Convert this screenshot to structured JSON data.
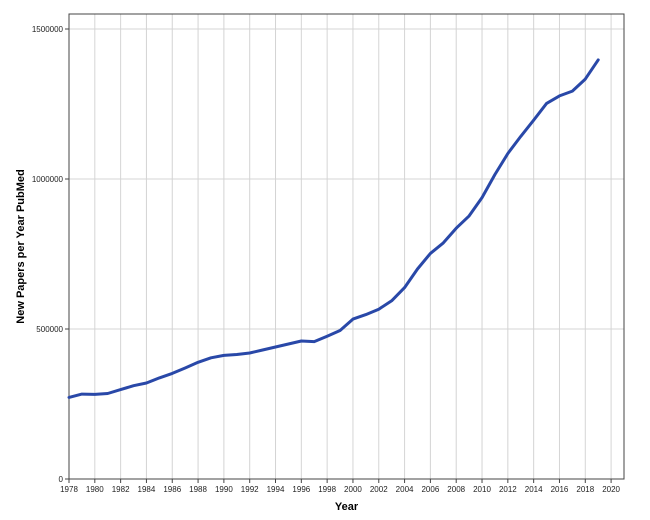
{
  "chart_data": {
    "type": "line",
    "title": "",
    "xlabel": "Year",
    "ylabel": "New Papers per Year PubMed",
    "xlim": [
      1978,
      2021
    ],
    "ylim": [
      0,
      1550000
    ],
    "grid": true,
    "x_ticks": [
      1978,
      1980,
      1982,
      1984,
      1986,
      1988,
      1990,
      1992,
      1994,
      1996,
      1998,
      2000,
      2002,
      2004,
      2006,
      2008,
      2010,
      2012,
      2014,
      2016,
      2018,
      2020
    ],
    "y_ticks": [
      0,
      500000,
      1000000,
      1500000
    ],
    "series": [
      {
        "name": "",
        "color": "#2948a8",
        "x": [
          1978,
          1979,
          1980,
          1981,
          1982,
          1983,
          1984,
          1985,
          1986,
          1987,
          1988,
          1989,
          1990,
          1991,
          1992,
          1993,
          1994,
          1995,
          1996,
          1997,
          1998,
          1999,
          2000,
          2001,
          2002,
          2003,
          2004,
          2005,
          2006,
          2007,
          2008,
          2009,
          2010,
          2011,
          2012,
          2013,
          2014,
          2015,
          2016,
          2017,
          2018,
          2019
        ],
        "y": [
          272000,
          283000,
          282000,
          285000,
          298000,
          311000,
          320000,
          337000,
          352000,
          370000,
          389000,
          404000,
          412000,
          415000,
          420000,
          430000,
          440000,
          450000,
          460000,
          458000,
          476000,
          495000,
          533000,
          548000,
          566000,
          594000,
          638000,
          700000,
          752000,
          787000,
          836000,
          877000,
          938000,
          1015000,
          1085000,
          1142000,
          1196000,
          1252000,
          1277000,
          1293000,
          1333000,
          1397000
        ]
      }
    ]
  }
}
